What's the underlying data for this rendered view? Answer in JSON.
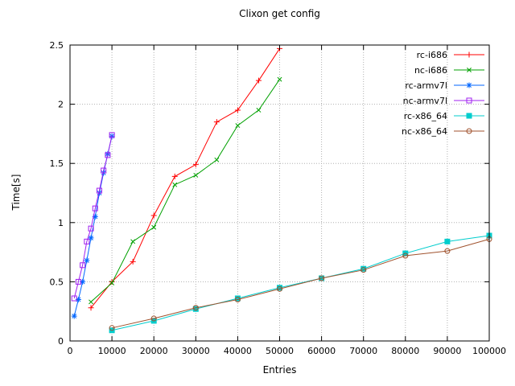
{
  "chart_data": {
    "type": "line",
    "title": "Clixon get config",
    "xlabel": "Entries",
    "ylabel": "Time[s]",
    "xlim": [
      0,
      100000
    ],
    "ylim": [
      0,
      2.5
    ],
    "xticks": [
      0,
      10000,
      20000,
      30000,
      40000,
      50000,
      60000,
      70000,
      80000,
      90000,
      100000
    ],
    "yticks": [
      0,
      0.5,
      1,
      1.5,
      2,
      2.5
    ],
    "grid": true,
    "legend_position": "top-right-inside",
    "colors": {
      "grid": "#b0b0b0",
      "border": "#000000",
      "background": "#ffffff"
    },
    "series": [
      {
        "name": "rc-i686",
        "color": "#ff0000",
        "marker": "plus",
        "x": [
          5000,
          10000,
          15000,
          20000,
          25000,
          30000,
          35000,
          40000,
          45000,
          50000
        ],
        "y": [
          0.28,
          0.5,
          0.67,
          1.06,
          1.39,
          1.49,
          1.85,
          1.95,
          2.2,
          2.47
        ]
      },
      {
        "name": "nc-i686",
        "color": "#00a000",
        "marker": "cross",
        "x": [
          5000,
          10000,
          15000,
          20000,
          25000,
          30000,
          35000,
          40000,
          45000,
          50000
        ],
        "y": [
          0.33,
          0.49,
          0.84,
          0.96,
          1.32,
          1.4,
          1.53,
          1.82,
          1.95,
          2.21
        ]
      },
      {
        "name": "rc-armv7l",
        "color": "#0066ff",
        "marker": "asterisk",
        "x": [
          1000,
          2000,
          3000,
          4000,
          5000,
          6000,
          7000,
          8000,
          9000,
          10000
        ],
        "y": [
          0.21,
          0.35,
          0.5,
          0.68,
          0.87,
          1.05,
          1.25,
          1.42,
          1.58,
          1.73
        ]
      },
      {
        "name": "nc-armv7l",
        "color": "#a020f0",
        "marker": "square-open",
        "x": [
          1000,
          2000,
          3000,
          4000,
          5000,
          6000,
          7000,
          8000,
          9000,
          10000
        ],
        "y": [
          0.36,
          0.5,
          0.64,
          0.84,
          0.95,
          1.12,
          1.27,
          1.44,
          1.57,
          1.74
        ]
      },
      {
        "name": "rc-x86_64",
        "color": "#00cdcd",
        "marker": "square-filled",
        "x": [
          10000,
          20000,
          30000,
          40000,
          50000,
          60000,
          70000,
          80000,
          90000,
          100000
        ],
        "y": [
          0.09,
          0.17,
          0.27,
          0.36,
          0.45,
          0.53,
          0.61,
          0.74,
          0.84,
          0.89
        ]
      },
      {
        "name": "nc-x86_64",
        "color": "#a0522d",
        "marker": "circle-open",
        "x": [
          10000,
          20000,
          30000,
          40000,
          50000,
          60000,
          70000,
          80000,
          90000,
          100000
        ],
        "y": [
          0.11,
          0.19,
          0.28,
          0.35,
          0.44,
          0.53,
          0.6,
          0.72,
          0.76,
          0.86
        ]
      }
    ]
  }
}
